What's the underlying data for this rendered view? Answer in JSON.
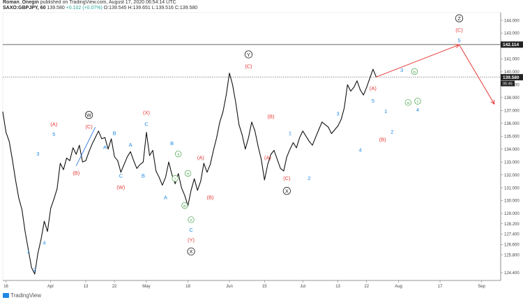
{
  "header": {
    "author": "Roman_Onegin",
    "published_text": "published on TradingView.com, August 17, 2020 06:54:14 UTC"
  },
  "symbol": {
    "name": "SAXO:GBPJPY, 60",
    "last": "139.580",
    "change": "+0.102 (+0.07%)",
    "o": "O:139.545",
    "h": "H:139.651",
    "l": "L:139.516",
    "c": "C:139.580"
  },
  "footer": {
    "brand": "TradingView"
  },
  "chart_data": {
    "type": "line",
    "series": [
      {
        "values": [
          [
            1,
            136.9
          ],
          [
            2,
            135.3
          ],
          [
            3,
            134.6
          ],
          [
            4,
            133.2
          ],
          [
            5,
            131.6
          ],
          [
            6,
            130.2
          ],
          [
            7,
            129.3
          ],
          [
            8,
            127.6
          ],
          [
            9,
            126.2
          ],
          [
            10,
            124.8
          ],
          [
            11,
            124.3
          ],
          [
            12,
            125.9
          ],
          [
            13,
            127.0
          ],
          [
            14,
            128.4
          ],
          [
            15,
            127.6
          ],
          [
            16,
            129.4
          ],
          [
            17,
            130.1
          ],
          [
            18,
            130.9
          ],
          [
            19,
            132.9
          ],
          [
            20,
            132.4
          ],
          [
            21,
            133.3
          ],
          [
            22,
            133.1
          ],
          [
            23,
            134.1
          ],
          [
            24,
            133.6
          ],
          [
            25,
            134.3
          ],
          [
            26,
            133.0
          ],
          [
            27,
            133.1
          ],
          [
            28,
            133.8
          ],
          [
            29,
            134.4
          ],
          [
            30,
            134.9
          ],
          [
            31,
            135.4
          ],
          [
            32,
            134.8
          ],
          [
            33,
            134.9
          ],
          [
            34,
            134.0
          ],
          [
            35,
            134.8
          ],
          [
            36,
            133.4
          ],
          [
            37,
            133.1
          ],
          [
            38,
            132.2
          ],
          [
            39,
            132.8
          ],
          [
            40,
            133.4
          ],
          [
            41,
            133.8
          ],
          [
            42,
            133.1
          ],
          [
            43,
            132.5
          ],
          [
            44,
            132.8
          ],
          [
            45,
            133.0
          ],
          [
            46,
            135.3
          ],
          [
            47,
            133.5
          ],
          [
            48,
            133.9
          ],
          [
            49,
            132.3
          ],
          [
            50,
            131.8
          ],
          [
            51,
            131.2
          ],
          [
            52,
            131.8
          ],
          [
            53,
            133.0
          ],
          [
            54,
            132.0
          ],
          [
            55,
            131.3
          ],
          [
            56,
            132.1
          ],
          [
            57,
            131.0
          ],
          [
            58,
            130.4
          ],
          [
            59,
            129.6
          ],
          [
            60,
            130.8
          ],
          [
            61,
            131.7
          ],
          [
            62,
            130.8
          ],
          [
            63,
            131.5
          ],
          [
            64,
            132.9
          ],
          [
            65,
            132.2
          ],
          [
            66,
            132.8
          ],
          [
            67,
            133.9
          ],
          [
            68,
            134.9
          ],
          [
            69,
            136.1
          ],
          [
            70,
            136.9
          ],
          [
            71,
            138.2
          ],
          [
            72,
            139.9
          ],
          [
            73,
            139.0
          ],
          [
            74,
            137.6
          ],
          [
            75,
            135.9
          ],
          [
            76,
            135.1
          ],
          [
            77,
            134.0
          ],
          [
            78,
            134.9
          ],
          [
            79,
            136.1
          ],
          [
            80,
            135.4
          ],
          [
            81,
            134.2
          ],
          [
            82,
            133.2
          ],
          [
            83,
            131.6
          ],
          [
            84,
            132.8
          ],
          [
            85,
            133.6
          ],
          [
            86,
            133.9
          ],
          [
            87,
            133.2
          ],
          [
            88,
            132.5
          ],
          [
            89,
            132.3
          ],
          [
            90,
            133.4
          ],
          [
            91,
            134.0
          ],
          [
            92,
            134.5
          ],
          [
            93,
            134.1
          ],
          [
            94,
            134.9
          ],
          [
            95,
            135.4
          ],
          [
            96,
            135.0
          ],
          [
            97,
            134.6
          ],
          [
            98,
            134.3
          ],
          [
            99,
            134.9
          ],
          [
            100,
            135.5
          ],
          [
            101,
            136.1
          ],
          [
            102,
            135.9
          ],
          [
            103,
            135.7
          ],
          [
            104,
            135.2
          ],
          [
            105,
            135.5
          ],
          [
            106,
            135.8
          ],
          [
            107,
            136.3
          ],
          [
            108,
            137.2
          ],
          [
            109,
            139.0
          ],
          [
            110,
            138.5
          ],
          [
            111,
            138.8
          ],
          [
            112,
            139.3
          ],
          [
            113,
            138.6
          ],
          [
            114,
            138.2
          ],
          [
            115,
            138.8
          ],
          [
            116,
            139.5
          ],
          [
            117,
            140.2
          ],
          [
            118,
            139.6
          ]
        ]
      }
    ],
    "x_ticks": [
      {
        "label": "16",
        "x": 2
      },
      {
        "label": "Apr",
        "x": 16
      },
      {
        "label": "13",
        "x": 27
      },
      {
        "label": "22",
        "x": 36
      },
      {
        "label": "May",
        "x": 46
      },
      {
        "label": "18",
        "x": 59
      },
      {
        "label": "Jun",
        "x": 72
      },
      {
        "label": "15",
        "x": 83
      },
      {
        "label": "Jul",
        "x": 95
      },
      {
        "label": "13",
        "x": 106
      },
      {
        "label": "22",
        "x": 115
      },
      {
        "label": "Aug",
        "x": 125
      },
      {
        "label": "17",
        "x": 138
      },
      {
        "label": "Sep",
        "x": 151
      }
    ],
    "y_ticks": [
      "124.400",
      "125.800",
      "126.600",
      "127.400",
      "128.200",
      "129.000",
      "130.000",
      "131.000",
      "132.000",
      "133.000",
      "134.000",
      "135.000",
      "136.000",
      "137.000",
      "138.000",
      "139.000",
      "140.000",
      "141.000",
      "142.000",
      "143.000",
      "144.000"
    ],
    "ylim": [
      123.8,
      144.6
    ],
    "xlim": [
      1,
      157
    ],
    "price_labels": {
      "horizontal_line": "142.114",
      "last_price": "139.580",
      "countdown": "05:46"
    },
    "forecast": [
      [
        118,
        139.6
      ],
      [
        144,
        142.1
      ],
      [
        155,
        137.5
      ]
    ],
    "annotations": [
      {
        "text": "W",
        "x": 28,
        "y": 136.5,
        "style": "circle-black"
      },
      {
        "text": "(C)",
        "x": 28,
        "y": 135.6,
        "style": "red"
      },
      {
        "text": "(A)",
        "x": 17,
        "y": 135.8,
        "style": "red"
      },
      {
        "text": "5",
        "x": 17,
        "y": 135.0,
        "style": "blue"
      },
      {
        "text": "3",
        "x": 12,
        "y": 133.5,
        "style": "blue"
      },
      {
        "text": "(B)",
        "x": 24,
        "y": 132.0,
        "style": "red"
      },
      {
        "text": "1",
        "x": 9,
        "y": 125.9,
        "style": "blue"
      },
      {
        "text": "2",
        "x": 11,
        "y": 124.5,
        "style": "blue"
      },
      {
        "text": "4",
        "x": 14,
        "y": 126.6,
        "style": "blue"
      },
      {
        "text": "A",
        "x": 33,
        "y": 134.0,
        "style": "blue"
      },
      {
        "text": "B",
        "x": 36,
        "y": 135.1,
        "style": "blue"
      },
      {
        "text": "C",
        "x": 38,
        "y": 131.8,
        "style": "blue"
      },
      {
        "text": "(W)",
        "x": 38,
        "y": 130.9,
        "style": "red"
      },
      {
        "text": "A",
        "x": 41,
        "y": 134.2,
        "style": "blue"
      },
      {
        "text": "B",
        "x": 45,
        "y": 131.8,
        "style": "blue"
      },
      {
        "text": "(X)",
        "x": 46,
        "y": 136.7,
        "style": "red"
      },
      {
        "text": "C",
        "x": 46,
        "y": 135.8,
        "style": "blue"
      },
      {
        "text": "A",
        "x": 52,
        "y": 130.1,
        "style": "blue"
      },
      {
        "text": "B",
        "x": 54,
        "y": 134.3,
        "style": "blue"
      },
      {
        "text": "ii",
        "x": 56,
        "y": 133.5,
        "style": "circle-green"
      },
      {
        "text": "i",
        "x": 55,
        "y": 131.6,
        "style": "circle-green"
      },
      {
        "text": "iv",
        "x": 59,
        "y": 132.0,
        "style": "circle-green"
      },
      {
        "text": "iii",
        "x": 58,
        "y": 129.5,
        "style": "circle-green"
      },
      {
        "text": "(A)",
        "x": 63,
        "y": 133.2,
        "style": "red"
      },
      {
        "text": "(B)",
        "x": 66,
        "y": 130.1,
        "style": "red"
      },
      {
        "text": "v",
        "x": 60,
        "y": 128.4,
        "style": "circle-green"
      },
      {
        "text": "C",
        "x": 60,
        "y": 127.6,
        "style": "blue"
      },
      {
        "text": "(Y)",
        "x": 60,
        "y": 126.8,
        "style": "red"
      },
      {
        "text": "X",
        "x": 60,
        "y": 125.9,
        "style": "circle-black"
      },
      {
        "text": "Y",
        "x": 78,
        "y": 141.2,
        "style": "circle-black"
      },
      {
        "text": "(C)",
        "x": 78,
        "y": 140.3,
        "style": "red"
      },
      {
        "text": "(B)",
        "x": 85,
        "y": 136.4,
        "style": "red"
      },
      {
        "text": "(A)",
        "x": 84,
        "y": 133.2,
        "style": "red"
      },
      {
        "text": "1",
        "x": 91,
        "y": 135.1,
        "style": "blue"
      },
      {
        "text": "(C)",
        "x": 90,
        "y": 131.6,
        "style": "red"
      },
      {
        "text": "X",
        "x": 90,
        "y": 130.6,
        "style": "circle-black"
      },
      {
        "text": "2",
        "x": 97,
        "y": 131.6,
        "style": "blue"
      },
      {
        "text": "3",
        "x": 106,
        "y": 136.6,
        "style": "blue"
      },
      {
        "text": "4",
        "x": 113,
        "y": 133.8,
        "style": "blue"
      },
      {
        "text": "5",
        "x": 117,
        "y": 137.6,
        "style": "blue"
      },
      {
        "text": "(A)",
        "x": 117,
        "y": 138.6,
        "style": "red"
      },
      {
        "text": "(B)",
        "x": 120,
        "y": 134.6,
        "style": "red"
      },
      {
        "text": "1",
        "x": 121,
        "y": 136.8,
        "style": "blue"
      },
      {
        "text": "2",
        "x": 123,
        "y": 135.2,
        "style": "blue"
      },
      {
        "text": "3",
        "x": 126,
        "y": 140.0,
        "style": "blue"
      },
      {
        "text": "4",
        "x": 131,
        "y": 136.9,
        "style": "blue"
      },
      {
        "text": "a",
        "x": 128,
        "y": 137.5,
        "style": "circle-green"
      },
      {
        "text": "b",
        "x": 130,
        "y": 139.9,
        "style": "circle-green"
      },
      {
        "text": "c",
        "x": 131,
        "y": 137.6,
        "style": "circle-green"
      },
      {
        "text": "Z",
        "x": 144,
        "y": 144.0,
        "style": "circle-black"
      },
      {
        "text": "(C)",
        "x": 144,
        "y": 143.1,
        "style": "red"
      },
      {
        "text": "5",
        "x": 144,
        "y": 142.3,
        "style": "blue"
      }
    ],
    "trendline": [
      [
        24,
        132.7
      ],
      [
        30,
        135.7
      ]
    ]
  }
}
